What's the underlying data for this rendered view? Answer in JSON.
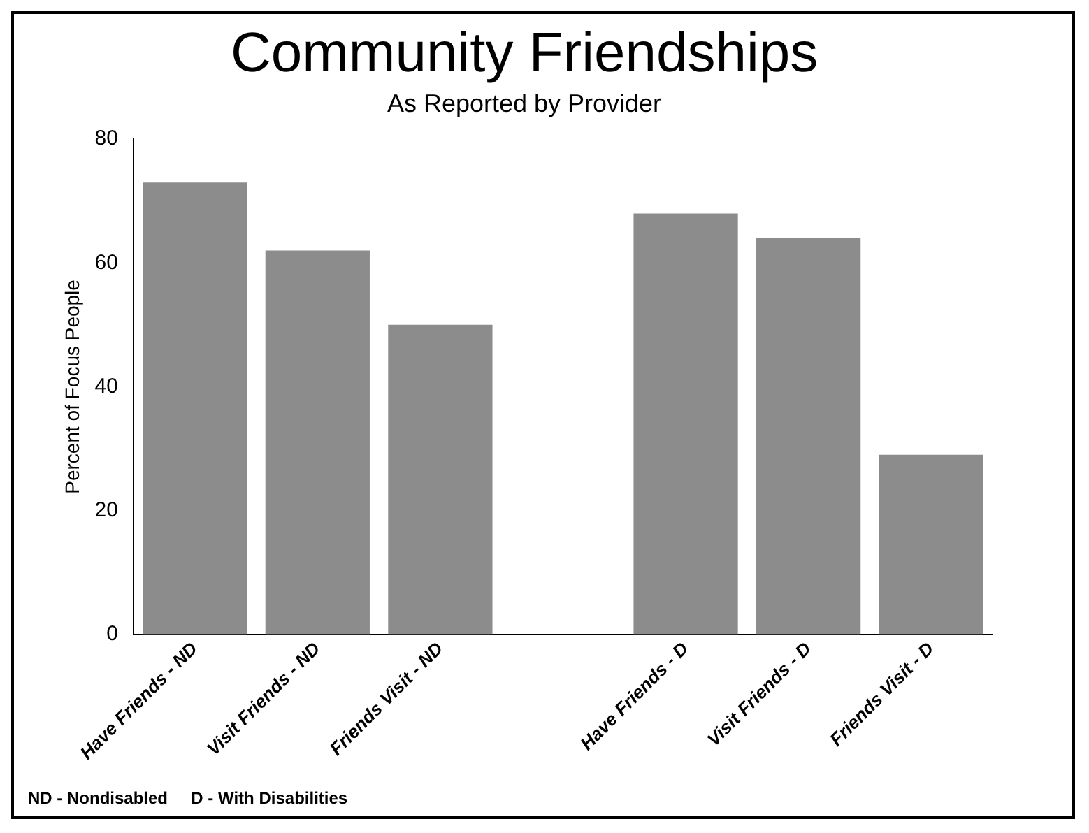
{
  "chart_data": {
    "type": "bar",
    "title": "Community Friendships",
    "subtitle": "As Reported by Provider",
    "ylabel": "Percent of Focus People",
    "categories": [
      "Have Friends - ND",
      "Visit Friends - ND",
      "Friends Visit - ND",
      null,
      "Have Friends - D",
      "Visit Friends - D",
      "Friends Visit - D"
    ],
    "values": [
      73,
      62,
      50,
      null,
      68,
      64,
      29
    ],
    "color": "#8c8c8c",
    "ylim": [
      0,
      80
    ],
    "yticks": [
      0,
      20,
      40,
      60,
      80
    ],
    "grid": false,
    "legend": false,
    "annotations": [
      "ND - Nondisabled     D - With Disabilities"
    ]
  }
}
